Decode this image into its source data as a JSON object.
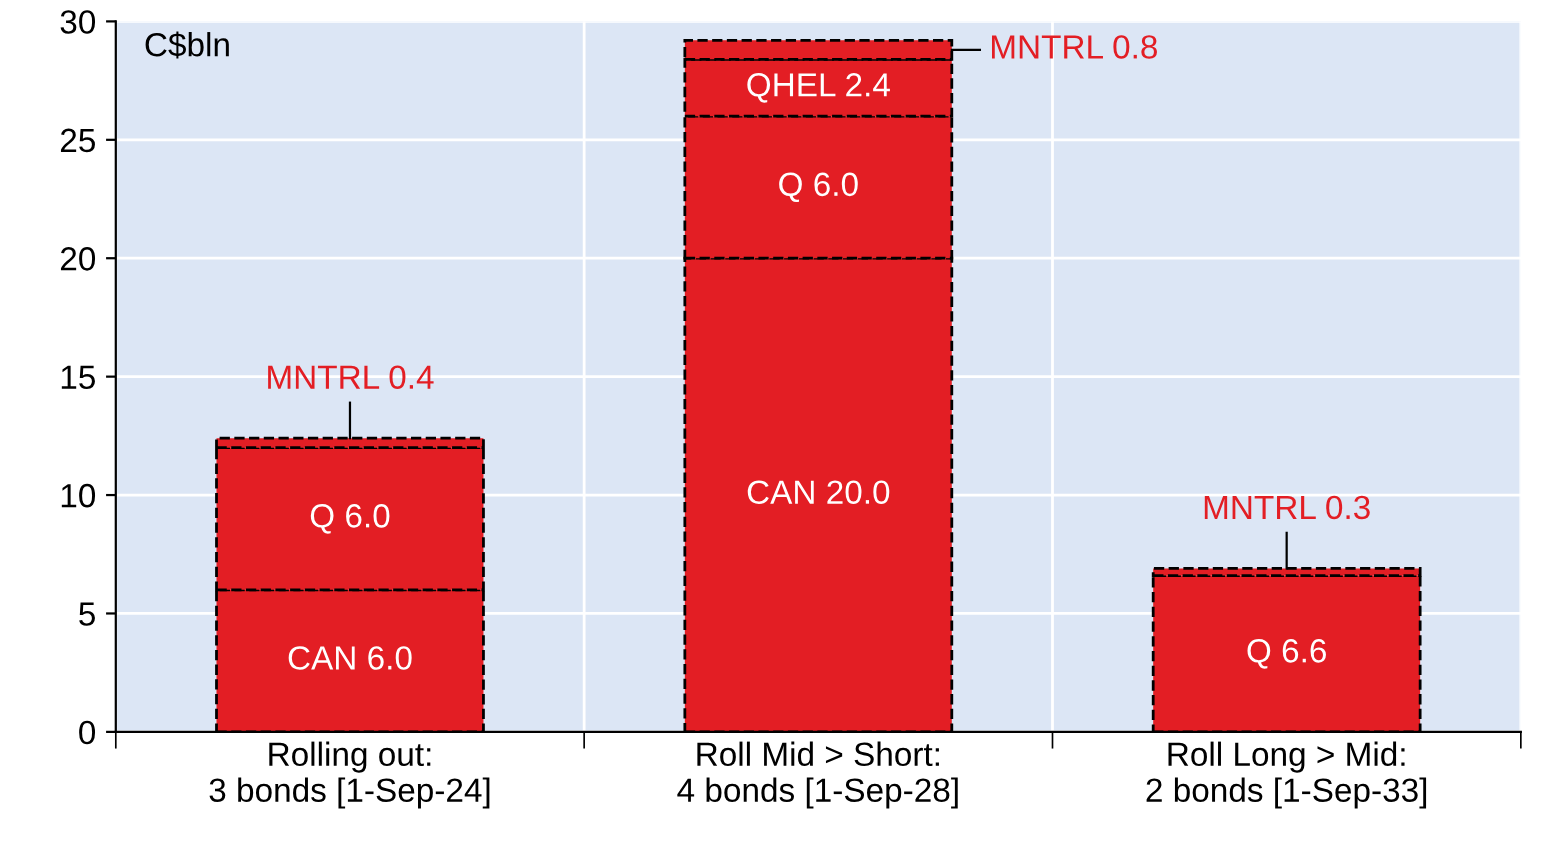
{
  "chart_data": {
    "type": "bar",
    "stacked": true,
    "categories": [
      "Rolling out:\n3 bonds [1-Sep-24]",
      "Roll Mid > Short:\n4 bonds [1-Sep-28]",
      "Roll Long > Mid:\n2 bonds [1-Sep-33]"
    ],
    "series": [
      {
        "color": "#e31e24",
        "values": [
          6.0,
          20.0,
          null
        ],
        "value_labels": [
          "CAN 6.0",
          "CAN 20.0",
          null
        ]
      },
      {
        "color": "#e31e24",
        "values": [
          6.0,
          6.0,
          6.6
        ],
        "value_labels": [
          "Q 6.0",
          "Q 6.0",
          "Q 6.6"
        ]
      },
      {
        "color": "#e31e24",
        "values": [
          null,
          2.4,
          null
        ],
        "value_labels": [
          null,
          "QHEL 2.4",
          null
        ]
      },
      {
        "color": "#e31e24",
        "values": [
          0.4,
          0.8,
          0.3
        ],
        "value_labels": [
          "MNTRL 0.4",
          "MNTRL 0.8",
          "MNTRL 0.3"
        ]
      }
    ],
    "ylim": [
      0,
      30
    ],
    "yticks": [
      0,
      5,
      10,
      15,
      20,
      25,
      30
    ],
    "grid": true,
    "annotations": [
      "C$bln"
    ]
  }
}
